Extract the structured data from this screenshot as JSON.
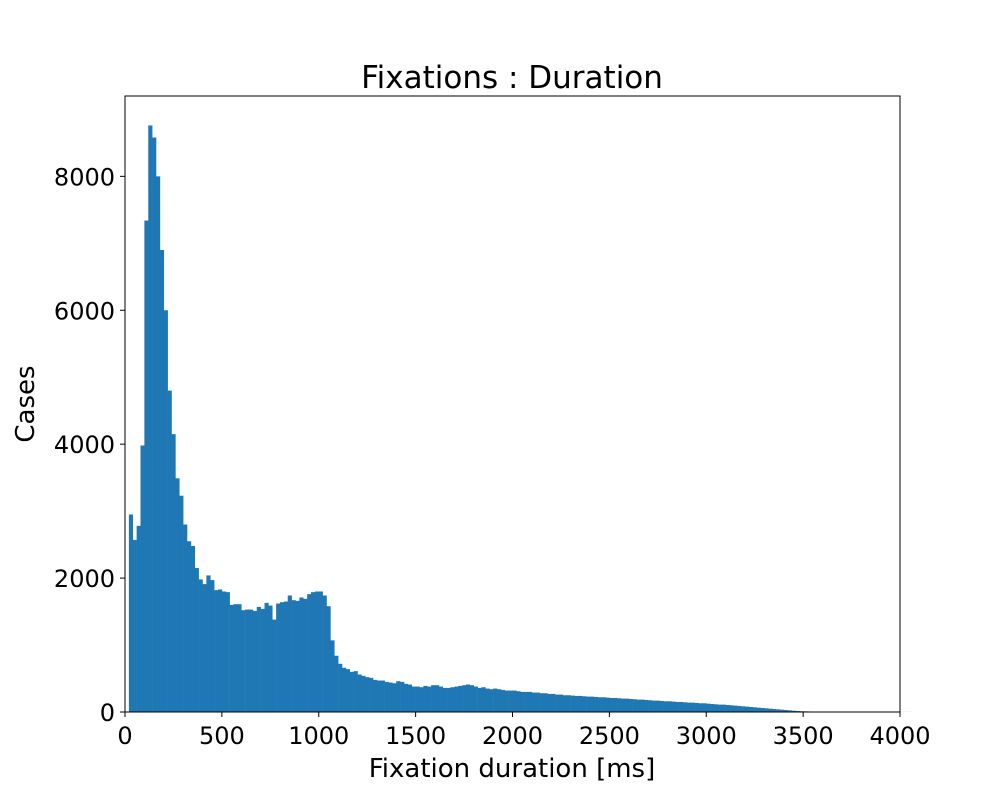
{
  "chart_data": {
    "type": "bar",
    "title": "Fixations : Duration",
    "xlabel": "Fixation duration [ms]",
    "ylabel": "Cases",
    "xlim": [
      0,
      4000
    ],
    "ylim": [
      0,
      9200
    ],
    "xticks": [
      0,
      500,
      1000,
      1500,
      2000,
      2500,
      3000,
      3500,
      4000
    ],
    "yticks": [
      0,
      2000,
      4000,
      6000,
      8000
    ],
    "grid": false,
    "bar_color": "#1f77b4",
    "bin_width": 20,
    "bin_start": 20,
    "values": [
      2950,
      2570,
      2780,
      3980,
      7340,
      8760,
      8580,
      8000,
      6900,
      6000,
      4800,
      4150,
      3490,
      3230,
      2800,
      2550,
      2480,
      2150,
      1980,
      1910,
      2040,
      1970,
      1820,
      1830,
      1800,
      1790,
      1600,
      1610,
      1610,
      1520,
      1530,
      1530,
      1510,
      1570,
      1540,
      1630,
      1590,
      1380,
      1620,
      1640,
      1650,
      1740,
      1670,
      1660,
      1710,
      1690,
      1760,
      1790,
      1800,
      1800,
      1740,
      1580,
      1070,
      840,
      720,
      660,
      640,
      600,
      610,
      560,
      540,
      520,
      510,
      480,
      470,
      470,
      450,
      440,
      430,
      460,
      450,
      420,
      410,
      380,
      380,
      370,
      390,
      380,
      400,
      400,
      380,
      360,
      360,
      370,
      380,
      390,
      400,
      410,
      400,
      380,
      360,
      370,
      350,
      340,
      350,
      340,
      330,
      320,
      320,
      320,
      310,
      300,
      300,
      300,
      290,
      290,
      280,
      280,
      270,
      270,
      260,
      260,
      250,
      250,
      245,
      240,
      240,
      235,
      230,
      230,
      225,
      220,
      220,
      215,
      210,
      210,
      205,
      200,
      200,
      195,
      190,
      185,
      185,
      180,
      175,
      170,
      170,
      165,
      160,
      160,
      155,
      150,
      150,
      145,
      140,
      140,
      135,
      130,
      130,
      125,
      120,
      115,
      110,
      110,
      105,
      100,
      95,
      90,
      85,
      80,
      75,
      70,
      65,
      60,
      55,
      50,
      45,
      40,
      35,
      30,
      25,
      20,
      15,
      12,
      10,
      8,
      6,
      5,
      4,
      3,
      2,
      1,
      1,
      1,
      1,
      1,
      1,
      1,
      1,
      1,
      1,
      1,
      1,
      1,
      1,
      1,
      1,
      1,
      1,
      1,
      1,
      1
    ]
  }
}
